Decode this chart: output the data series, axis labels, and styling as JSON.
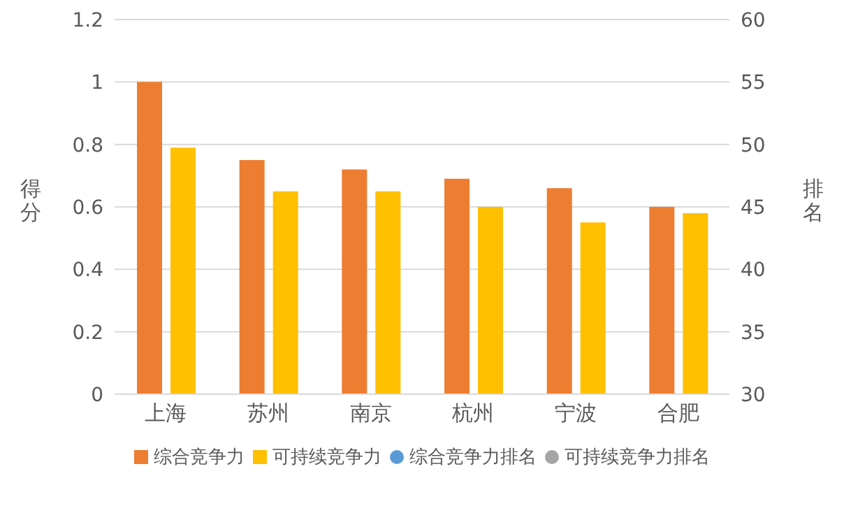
{
  "chart_data": {
    "type": "bar",
    "ylabel": "得分",
    "y2label": "排名",
    "categories": [
      "上海",
      "苏州",
      "南京",
      "杭州",
      "宁波",
      "合肥"
    ],
    "series": [
      {
        "name": "综合竞争力",
        "color": "#ed7d31",
        "values": [
          1.0,
          0.75,
          0.72,
          0.69,
          0.66,
          0.6
        ]
      },
      {
        "name": "可持续竞争力",
        "color": "#ffc000",
        "values": [
          0.79,
          0.65,
          0.65,
          0.6,
          0.55,
          0.58
        ]
      },
      {
        "name": "综合竞争力排名",
        "type": "scatter",
        "axis": "y2",
        "color": "#5b9bd5",
        "values": [
          null,
          null,
          null,
          null,
          null,
          null
        ]
      },
      {
        "name": "可持续竞争力排名",
        "type": "scatter",
        "axis": "y2",
        "color": "#a5a5a5",
        "values": [
          null,
          null,
          null,
          null,
          null,
          null
        ]
      }
    ],
    "ylim": [
      0,
      1.2
    ],
    "yticks": [
      0,
      0.2,
      0.4,
      0.6,
      0.8,
      1,
      1.2
    ],
    "y2lim": [
      30,
      60
    ],
    "y2ticks": [
      30,
      35,
      40,
      45,
      50,
      55,
      60
    ],
    "grid": "y",
    "legend": "bottom",
    "marker": "circle"
  }
}
